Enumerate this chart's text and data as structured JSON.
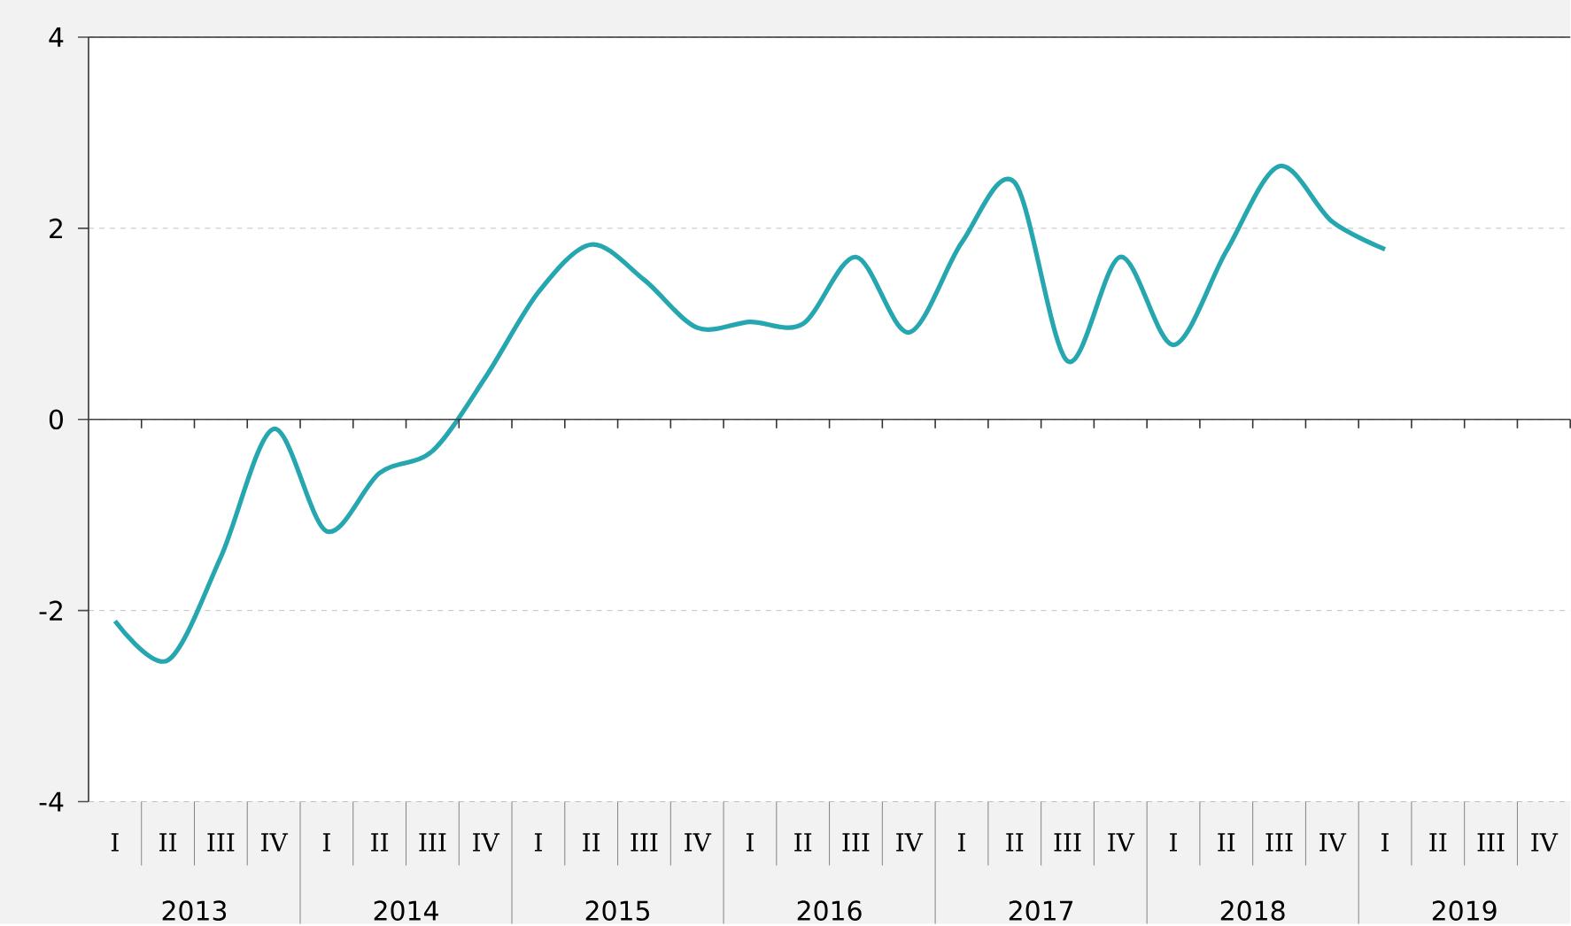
{
  "chart_data": {
    "type": "line",
    "categories": [
      "I",
      "II",
      "III",
      "IV",
      "I",
      "II",
      "III",
      "IV",
      "I",
      "II",
      "III",
      "IV",
      "I",
      "II",
      "III",
      "IV",
      "I",
      "II",
      "III",
      "IV",
      "I",
      "II",
      "III",
      "IV",
      "I",
      "II",
      "III",
      "IV"
    ],
    "series": [
      {
        "color": "#26a7b0",
        "values": [
          -2.11,
          -2.52,
          -1.44,
          -0.1,
          -1.17,
          -0.56,
          -0.33,
          0.44,
          1.33,
          1.83,
          1.46,
          0.96,
          1.02,
          1.0,
          1.7,
          0.91,
          1.85,
          2.48,
          0.61,
          1.7,
          0.78,
          1.76,
          2.65,
          2.07,
          1.78,
          null,
          null,
          null
        ]
      }
    ],
    "ylim": [
      -4,
      4
    ],
    "yticks": [
      -4,
      -2,
      0,
      2,
      4
    ],
    "grid": "y",
    "ref_lines": [
      {
        "axis": "y",
        "value": 0
      }
    ],
    "annotations": [
      "2013",
      "2014",
      "2015",
      "2016",
      "2017",
      "2018",
      "2019"
    ]
  }
}
